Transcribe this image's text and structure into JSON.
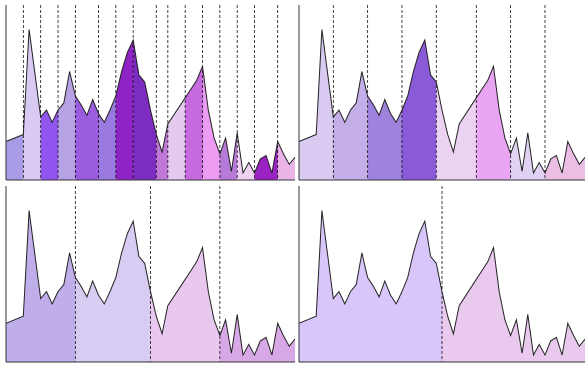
{
  "chart_data": {
    "type": "area",
    "title": "",
    "xlabel": "",
    "ylabel": "",
    "grid": false,
    "legend": "none",
    "xlim": [
      0,
      50
    ],
    "ylim": [
      0,
      100
    ],
    "series": [
      {
        "x": [
          0,
          3,
          4,
          6,
          7,
          8,
          9,
          10,
          11,
          12,
          13,
          14,
          15,
          16,
          17,
          18,
          19,
          20,
          21,
          22,
          23,
          24,
          25,
          26,
          27,
          28,
          31,
          32,
          33,
          34,
          35,
          36,
          37,
          38,
          39,
          40,
          41,
          42,
          43,
          44,
          45,
          46,
          47,
          48,
          49,
          50
        ],
        "y": [
          22,
          26,
          86,
          36,
          40,
          33,
          40,
          44,
          62,
          48,
          43,
          37,
          46,
          38,
          33,
          40,
          48,
          62,
          73,
          80,
          60,
          56,
          40,
          26,
          16,
          32,
          47,
          52,
          57,
          65,
          40,
          24,
          15,
          24,
          5,
          27,
          4,
          10,
          4,
          12,
          14,
          4,
          22,
          15,
          9,
          13
        ]
      }
    ],
    "panels": [
      {
        "name": "panel-top-left",
        "breaks": [
          3,
          6,
          9,
          12,
          16,
          19,
          22,
          26,
          28,
          31,
          34,
          37,
          40,
          43,
          47,
          50
        ],
        "colors": [
          "#a99be6",
          "#d8caf2",
          "#9254ee",
          "#b8a2e6",
          "#9a5ddf",
          "#9a7ae0",
          "#8f24c6",
          "#7d2cc2",
          "#c078d8",
          "#e6c9ee",
          "#c66ae0",
          "#ec9cf2",
          "#b87ad8",
          "#f2d2f4",
          "#9a22c2",
          "#eab4e6"
        ]
      },
      {
        "name": "panel-top-right",
        "breaks": [
          6,
          12,
          18,
          24,
          31,
          37,
          43,
          50
        ],
        "colors": [
          "#d8caf0",
          "#c4aee8",
          "#9e82de",
          "#8a5ad8",
          "#ecd2f2",
          "#eaa4f4",
          "#dfd2f2",
          "#ecbee6"
        ]
      },
      {
        "name": "panel-bottom-left",
        "breaks": [
          12,
          25,
          37,
          50
        ],
        "colors": [
          "#c0aeea",
          "#d8ccf2",
          "#e8c8ee",
          "#d8a8e6"
        ]
      },
      {
        "name": "panel-bottom-right",
        "breaks": [
          25,
          50
        ],
        "colors": [
          "#d8c6fa",
          "#e9caee"
        ]
      }
    ]
  }
}
